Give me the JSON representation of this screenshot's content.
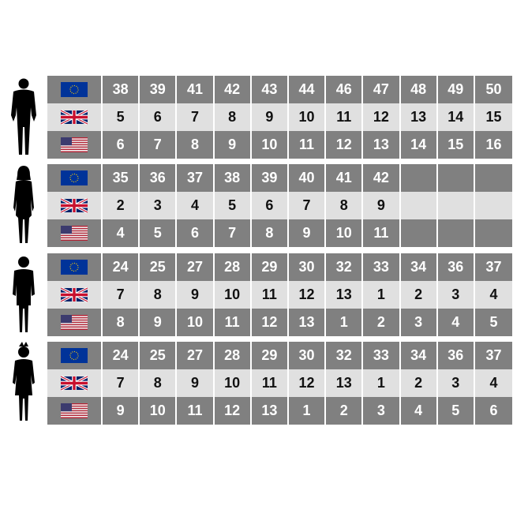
{
  "colors": {
    "dark_row": "#808080",
    "light_row": "#e0e0e0",
    "eu_flag": "#003399",
    "uk_flag": "#012169",
    "us_red": "#b22234"
  },
  "row_flags": [
    "eu-flag-icon",
    "uk-flag-icon",
    "us-flag-icon"
  ],
  "sections": [
    {
      "figure": "man-silhouette-icon",
      "eu": [
        "38",
        "39",
        "41",
        "42",
        "43",
        "44",
        "46",
        "47",
        "48",
        "49",
        "50"
      ],
      "uk": [
        "5",
        "6",
        "7",
        "8",
        "9",
        "10",
        "11",
        "12",
        "13",
        "14",
        "15"
      ],
      "us": [
        "6",
        "7",
        "8",
        "9",
        "10",
        "11",
        "12",
        "13",
        "14",
        "15",
        "16"
      ]
    },
    {
      "figure": "woman-silhouette-icon",
      "eu": [
        "35",
        "36",
        "37",
        "38",
        "39",
        "40",
        "41",
        "42",
        "",
        "",
        ""
      ],
      "uk": [
        "2",
        "3",
        "4",
        "5",
        "6",
        "7",
        "8",
        "9",
        "",
        "",
        ""
      ],
      "us": [
        "4",
        "5",
        "6",
        "7",
        "8",
        "9",
        "10",
        "11",
        "",
        "",
        ""
      ]
    },
    {
      "figure": "boy-silhouette-icon",
      "eu": [
        "24",
        "25",
        "27",
        "28",
        "29",
        "30",
        "32",
        "33",
        "34",
        "36",
        "37"
      ],
      "uk": [
        "7",
        "8",
        "9",
        "10",
        "11",
        "12",
        "13",
        "1",
        "2",
        "3",
        "4"
      ],
      "us": [
        "8",
        "9",
        "10",
        "11",
        "12",
        "13",
        "1",
        "2",
        "3",
        "4",
        "5"
      ]
    },
    {
      "figure": "girl-silhouette-icon",
      "eu": [
        "24",
        "25",
        "27",
        "28",
        "29",
        "30",
        "32",
        "33",
        "34",
        "36",
        "37"
      ],
      "uk": [
        "7",
        "8",
        "9",
        "10",
        "11",
        "12",
        "13",
        "1",
        "2",
        "3",
        "4"
      ],
      "us": [
        "9",
        "10",
        "11",
        "12",
        "13",
        "1",
        "2",
        "3",
        "4",
        "5",
        "6"
      ]
    }
  ]
}
